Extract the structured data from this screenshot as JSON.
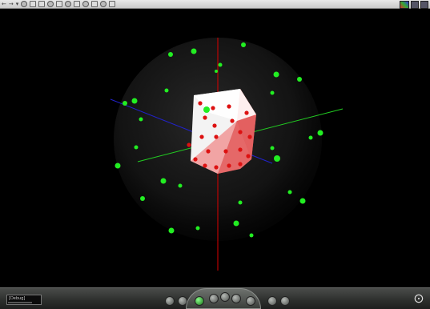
{
  "toolbar": {
    "buttons": [
      "back",
      "forward",
      "dropdown",
      "home",
      "viewpoint-prev",
      "viewpoint-next",
      "zoom",
      "fit",
      "rotate",
      "pan",
      "examine",
      "walk",
      "fly",
      "study"
    ]
  },
  "scene": {
    "background_color": "#000000",
    "sphere_color": "#3a3a3a",
    "cube_color_front": "#ffffff",
    "cube_color_side": "#e05050",
    "point_color_outer": "#22ee22",
    "point_color_inner": "#dd1111",
    "axis_colors": {
      "x": "#22cc22",
      "y": "#dd0000",
      "z": "#2222cc"
    }
  },
  "controlbar": {
    "status_text": "[Debug]"
  }
}
